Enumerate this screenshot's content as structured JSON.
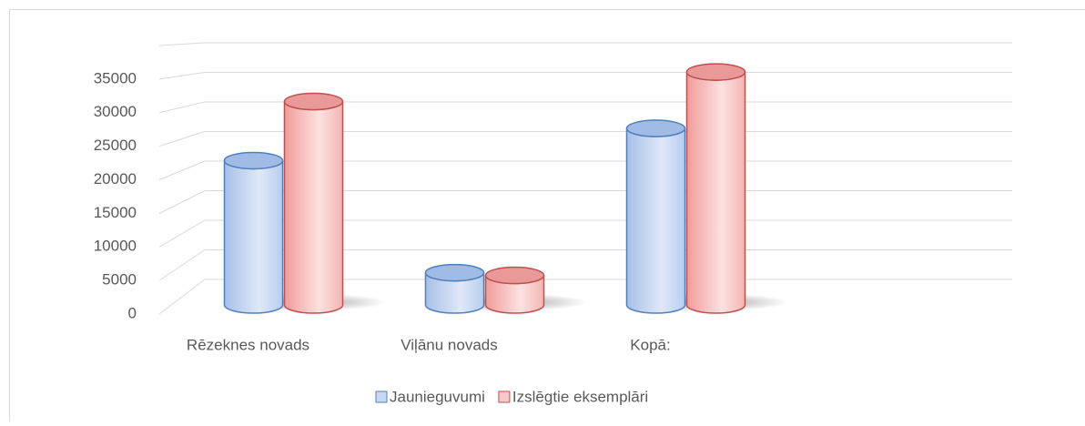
{
  "chart_data": {
    "type": "bar3d",
    "categories": [
      "Rēzeknes novads",
      "Viļānu novads",
      "Kopā:"
    ],
    "series": [
      {
        "name": "Jaunieguvumi",
        "color": "#4f81bd",
        "values": [
          21500,
          4800,
          26300
        ]
      },
      {
        "name": "Izslēgtie eksemplāri",
        "color": "#c0504d",
        "values": [
          30300,
          4400,
          34700
        ]
      }
    ],
    "ylim": [
      0,
      40000
    ],
    "yticks": [
      0,
      5000,
      10000,
      15000,
      20000,
      25000,
      30000,
      35000
    ],
    "grid": true,
    "legend": "bottom"
  }
}
